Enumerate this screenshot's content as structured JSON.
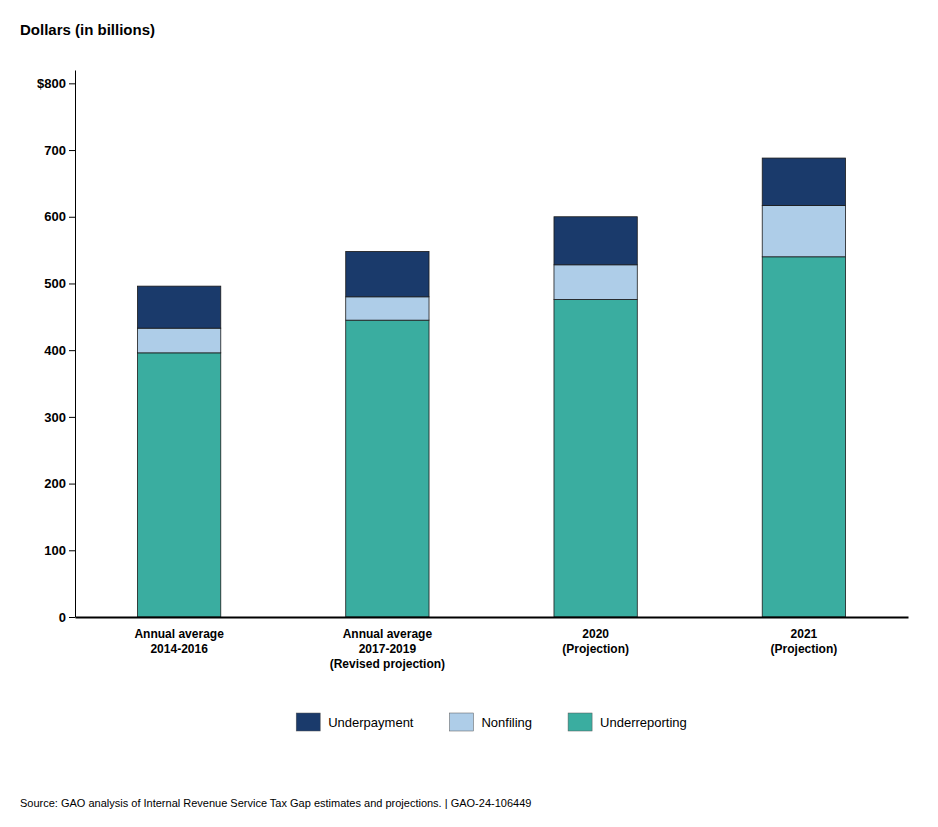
{
  "chart_data": {
    "type": "bar",
    "title": "Dollars (in billions)",
    "stacked": true,
    "categories": [
      "Annual average\n2014-2016",
      "Annual average\n2017-2019\n(Revised projection)",
      "2020\n(Projection)",
      "2021\n(Projection)"
    ],
    "series": [
      {
        "name": "Underreporting",
        "color": "#3aada0",
        "values": [
          396,
          445,
          476,
          540
        ]
      },
      {
        "name": "Nonfiling",
        "color": "#aecde8",
        "values": [
          37,
          35,
          52,
          77
        ]
      },
      {
        "name": "Underpayment",
        "color": "#1a3a6b",
        "values": [
          63,
          68,
          72,
          71
        ]
      }
    ],
    "ylim": [
      0,
      820
    ],
    "yticks": [
      0,
      100,
      200,
      300,
      400,
      500,
      600,
      700,
      {
        "value": 800,
        "label": "$800"
      }
    ],
    "grid": false,
    "legend": "bottom",
    "annotations": [
      "Source: GAO analysis of Internal Revenue Service Tax Gap estimates and projections.  |  GAO-24-106449"
    ]
  }
}
